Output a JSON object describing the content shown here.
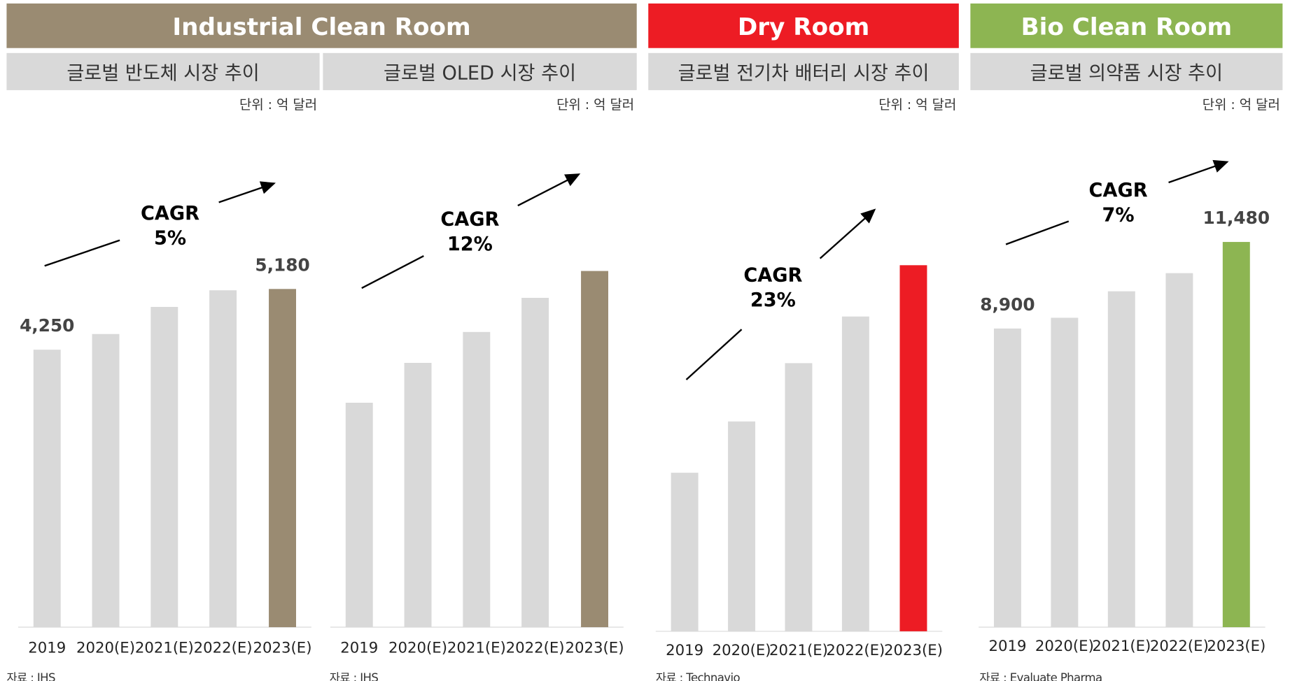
{
  "headers": [
    {
      "text": "Industrial Clean Room",
      "color": "#9a8b72"
    },
    {
      "text": "Dry Room",
      "color": "#ed1c24"
    },
    {
      "text": "Bio Clean Room",
      "color": "#8db552"
    }
  ],
  "chart_data": [
    {
      "type": "bar",
      "subtitle": "글로벌 반도체 시장 추이",
      "unit": "단위 : 억 달러",
      "source": "자료 : IHS",
      "categories": [
        "2019",
        "2020(E)",
        "2021(E)",
        "2022(E)",
        "2023(E)"
      ],
      "values": [
        4250,
        4490,
        4905,
        5160,
        5180
      ],
      "value_labels": [
        "4,250",
        null,
        null,
        null,
        "5,180"
      ],
      "colors": [
        "#d9d9d9",
        "#d9d9d9",
        "#d9d9d9",
        "#d9d9d9",
        "#9a8b72"
      ],
      "ylim": [
        0,
        7000
      ],
      "annotation": [
        "CAGR",
        "5%"
      ]
    },
    {
      "type": "bar",
      "subtitle": "글로벌 OLED 시장 추이",
      "unit": "단위 : 억 달러",
      "source": "자료 : IHS",
      "categories": [
        "2019",
        "2020(E)",
        "2021(E)",
        "2022(E)",
        "2023(E)"
      ],
      "values": [
        276,
        325,
        363,
        405,
        438
      ],
      "value_labels": [
        null,
        null,
        null,
        null,
        null
      ],
      "colors": [
        "#d9d9d9",
        "#d9d9d9",
        "#d9d9d9",
        "#d9d9d9",
        "#9a8b72"
      ],
      "ylim": [
        0,
        562
      ],
      "annotation": [
        "CAGR",
        "12%"
      ]
    },
    {
      "type": "bar",
      "subtitle": "글로벌 전기차 배터리 시장 추이",
      "unit": "단위 : 억 달러",
      "source": "자료 : Technavio",
      "categories": [
        "2019",
        "2020(E)",
        "2021(E)",
        "2022(E)",
        "2023(E)"
      ],
      "values": [
        68,
        90,
        115,
        135,
        157
      ],
      "value_labels": [
        null,
        null,
        null,
        null,
        null
      ],
      "colors": [
        "#d9d9d9",
        "#d9d9d9",
        "#d9d9d9",
        "#d9d9d9",
        "#ed1c24"
      ],
      "ylim": [
        0,
        196
      ],
      "annotation": [
        "CAGR",
        "23%"
      ]
    },
    {
      "type": "bar",
      "subtitle": "글로벌 의약품 시장 추이",
      "unit": "단위 : 억 달러",
      "source": "자료 : Evaluate Pharma",
      "categories": [
        "2019",
        "2020(E)",
        "2021(E)",
        "2022(E)",
        "2023(E)"
      ],
      "values": [
        8900,
        9220,
        10010,
        10550,
        11480
      ],
      "value_labels": [
        "8,900",
        null,
        null,
        null,
        "11,480"
      ],
      "colors": [
        "#d9d9d9",
        "#d9d9d9",
        "#d9d9d9",
        "#d9d9d9",
        "#8db552"
      ],
      "ylim": [
        0,
        13620
      ],
      "annotation": [
        "CAGR",
        "7%"
      ]
    }
  ]
}
